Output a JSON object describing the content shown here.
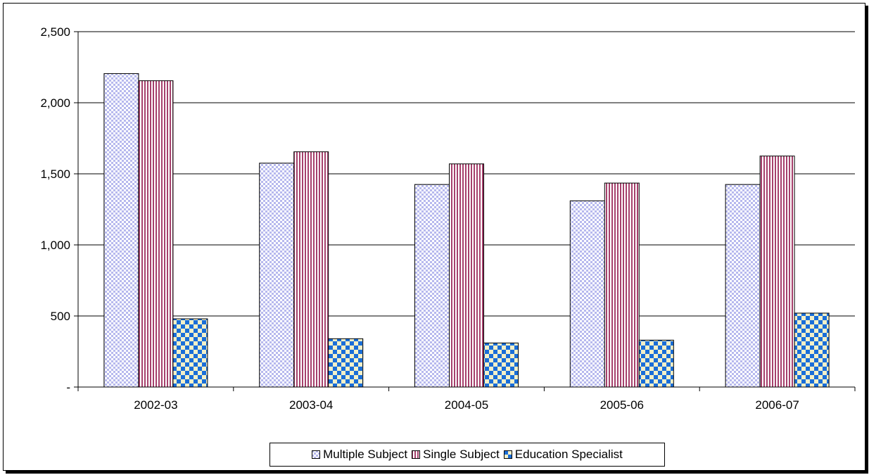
{
  "chart_data": {
    "type": "bar",
    "categories": [
      "2002-03",
      "2003-04",
      "2004-05",
      "2005-06",
      "2006-07"
    ],
    "series": [
      {
        "name": "Multiple Subject",
        "values": [
          2205,
          1575,
          1425,
          1310,
          1425
        ],
        "color": "#b7b9ee",
        "pattern": "checker-fine"
      },
      {
        "name": "Single Subject",
        "values": [
          2155,
          1655,
          1570,
          1435,
          1625
        ],
        "color": "#a6406c",
        "pattern": "vertical-stripes"
      },
      {
        "name": "Education Specialist",
        "values": [
          480,
          340,
          310,
          330,
          520
        ],
        "color": "#1a6ed8",
        "pattern": "checker-coarse"
      }
    ],
    "ylim": [
      0,
      2500
    ],
    "yticks": [
      {
        "value": 0,
        "label": "-"
      },
      {
        "value": 500,
        "label": "500"
      },
      {
        "value": 1000,
        "label": "1,000"
      },
      {
        "value": 1500,
        "label": "1,500"
      },
      {
        "value": 2000,
        "label": "2,000"
      },
      {
        "value": 2500,
        "label": "2,500"
      }
    ],
    "grid": true,
    "legend_position": "bottom"
  }
}
